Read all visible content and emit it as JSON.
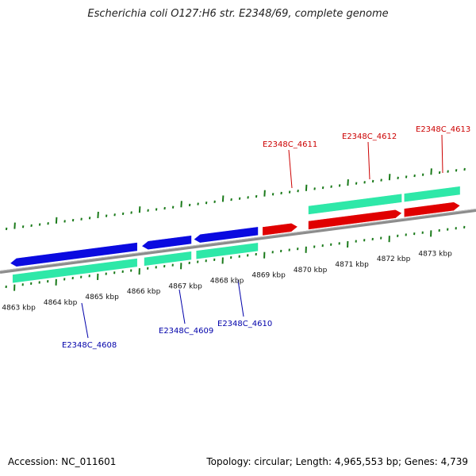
{
  "title": "Escherichia coli O127:H6 str. E2348/69, complete genome",
  "footer": {
    "accession": "Accession: NC_011601",
    "summary": "Topology: circular; Length: 4,965,553 bp; Genes: 4,739"
  },
  "colors": {
    "backbone": "#8c8c8c",
    "tick": "#1a7a1a",
    "gene_forward": "#e00000",
    "gene_reverse": "#0a0ae0",
    "cds": "#2ee8a8",
    "label_forward": "#cc0000",
    "label_reverse": "#0000aa"
  },
  "ticks": [
    {
      "kbp": 4863,
      "label": "4863 kbp"
    },
    {
      "kbp": 4864,
      "label": "4864 kbp"
    },
    {
      "kbp": 4865,
      "label": "4865 kbp"
    },
    {
      "kbp": 4866,
      "label": "4866 kbp"
    },
    {
      "kbp": 4867,
      "label": "4867 kbp"
    },
    {
      "kbp": 4868,
      "label": "4868 kbp"
    },
    {
      "kbp": 4869,
      "label": "4869 kbp"
    },
    {
      "kbp": 4870,
      "label": "4870 kbp"
    },
    {
      "kbp": 4871,
      "label": "4871 kbp"
    },
    {
      "kbp": 4872,
      "label": "4872 kbp"
    },
    {
      "kbp": 4873,
      "label": "4873 kbp"
    }
  ],
  "genes": [
    {
      "name": "E2348C_4608",
      "strand": "-",
      "start_kbp": 4862.7,
      "end_kbp": 4865.95
    },
    {
      "name": "E2348C_4609",
      "strand": "-",
      "start_kbp": 4866.05,
      "end_kbp": 4867.25
    },
    {
      "name": "E2348C_4610",
      "strand": "-",
      "start_kbp": 4867.3,
      "end_kbp": 4868.85
    },
    {
      "name": "E2348C_4611",
      "strand": "+",
      "start_kbp": 4868.95,
      "end_kbp": 4869.8
    },
    {
      "name": "E2348C_4612",
      "strand": "+",
      "start_kbp": 4870.05,
      "end_kbp": 4872.3
    },
    {
      "name": "E2348C_4613",
      "strand": "+",
      "start_kbp": 4872.35,
      "end_kbp": 4873.7
    }
  ]
}
